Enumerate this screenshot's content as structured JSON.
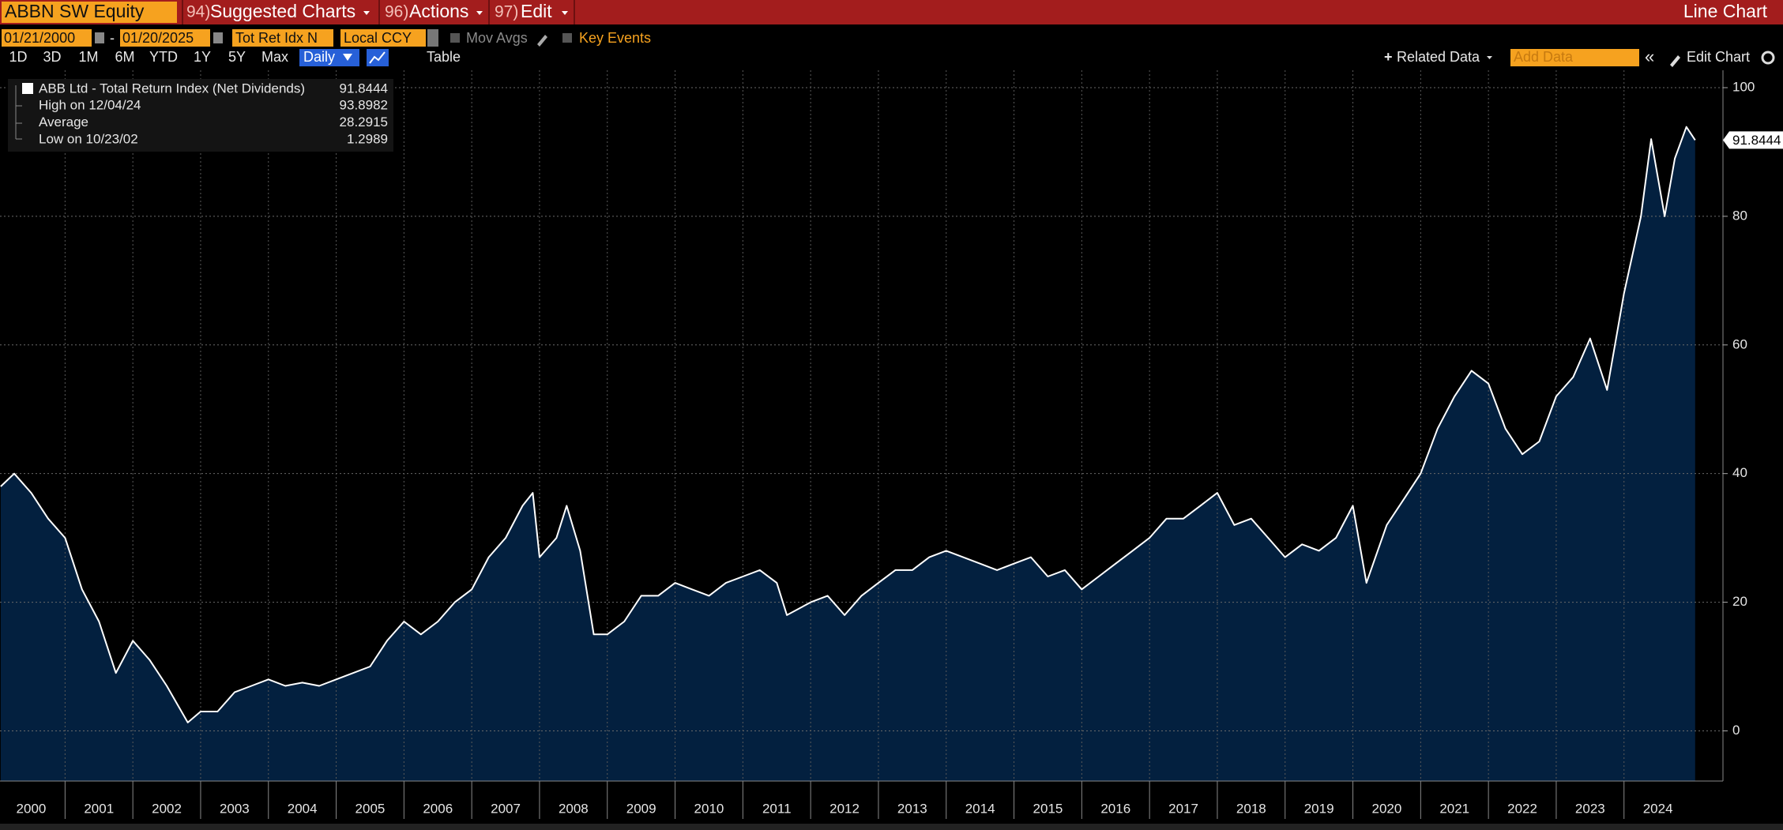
{
  "toolbar": {
    "security": "ABBN SW Equity",
    "menus": [
      {
        "key": "94)",
        "label": "Suggested Charts"
      },
      {
        "key": "96)",
        "label": "Actions"
      },
      {
        "key": "97)",
        "label": "Edit"
      }
    ],
    "view": "Line Chart"
  },
  "controls": {
    "start_date": "01/21/2000",
    "date_separator": "-",
    "end_date": "01/20/2025",
    "field": "Tot Ret Idx N",
    "currency": "Local CCY",
    "mov_avgs": "Mov Avgs",
    "key_events": "Key Events",
    "ranges": [
      "1D",
      "3D",
      "1M",
      "6M",
      "YTD",
      "1Y",
      "5Y",
      "Max"
    ],
    "periodicity": "Daily",
    "table": "Table",
    "related_data": "Related Data",
    "add_data": "Add Data",
    "edit_chart": "Edit Chart"
  },
  "chart_data": {
    "type": "area",
    "series": [
      {
        "name": "ABB Ltd - Total Return Index (Net Dividends)",
        "color": "#ffffff",
        "fill": "#03203f",
        "x": [
          2000.05,
          2000.25,
          2000.5,
          2000.75,
          2001.0,
          2001.25,
          2001.5,
          2001.75,
          2002.0,
          2002.25,
          2002.5,
          2002.81,
          2003.0,
          2003.25,
          2003.5,
          2003.75,
          2004.0,
          2004.25,
          2004.5,
          2004.75,
          2005.0,
          2005.25,
          2005.5,
          2005.75,
          2006.0,
          2006.25,
          2006.5,
          2006.75,
          2007.0,
          2007.25,
          2007.5,
          2007.75,
          2007.9,
          2008.0,
          2008.25,
          2008.4,
          2008.6,
          2008.8,
          2009.0,
          2009.25,
          2009.5,
          2009.75,
          2010.0,
          2010.25,
          2010.5,
          2010.75,
          2011.0,
          2011.25,
          2011.5,
          2011.65,
          2012.0,
          2012.25,
          2012.5,
          2012.75,
          2013.0,
          2013.25,
          2013.5,
          2013.75,
          2014.0,
          2014.25,
          2014.5,
          2014.75,
          2015.0,
          2015.25,
          2015.5,
          2015.75,
          2016.0,
          2016.25,
          2016.5,
          2016.75,
          2017.0,
          2017.25,
          2017.5,
          2017.75,
          2018.0,
          2018.25,
          2018.5,
          2018.75,
          2019.0,
          2019.25,
          2019.5,
          2019.75,
          2020.0,
          2020.2,
          2020.5,
          2020.75,
          2021.0,
          2021.25,
          2021.5,
          2021.75,
          2022.0,
          2022.25,
          2022.5,
          2022.75,
          2023.0,
          2023.25,
          2023.5,
          2023.75,
          2024.0,
          2024.25,
          2024.4,
          2024.6,
          2024.75,
          2024.92,
          2025.05
        ],
        "values": [
          38,
          40,
          37,
          33,
          30,
          22,
          17,
          9,
          14,
          11,
          7,
          1.2989,
          3,
          3,
          6,
          7,
          8,
          7,
          7.5,
          7,
          8,
          9,
          10,
          14,
          17,
          15,
          17,
          20,
          22,
          27,
          30,
          35,
          37,
          27,
          30,
          35,
          28,
          15,
          15,
          17,
          21,
          21,
          23,
          22,
          21,
          23,
          24,
          25,
          23,
          18,
          20,
          21,
          18,
          21,
          23,
          25,
          25,
          27,
          28,
          27,
          26,
          25,
          26,
          27,
          24,
          25,
          22,
          24,
          26,
          28,
          30,
          33,
          33,
          35,
          37,
          32,
          33,
          30,
          27,
          29,
          28,
          30,
          35,
          23,
          32,
          36,
          40,
          47,
          52,
          56,
          54,
          47,
          43,
          45,
          52,
          55,
          61,
          53,
          68,
          80,
          92,
          80,
          89,
          93.8982,
          91.8444
        ]
      }
    ],
    "stats": [
      {
        "label": "High on 12/04/24",
        "value": 93.8982
      },
      {
        "label": "Average",
        "value": 28.2915
      },
      {
        "label": "Low on 10/23/02",
        "value": 1.2989
      }
    ],
    "xlim": [
      2000.04,
      2025.46
    ],
    "xticks": [
      2000,
      2001,
      2002,
      2003,
      2004,
      2005,
      2006,
      2007,
      2008,
      2009,
      2010,
      2011,
      2012,
      2013,
      2014,
      2015,
      2016,
      2017,
      2018,
      2019,
      2020,
      2021,
      2022,
      2023,
      2024
    ],
    "ylim": [
      -7.8,
      102.7
    ],
    "yticks": [
      0,
      20,
      40,
      60,
      80,
      100
    ],
    "grid": true
  }
}
